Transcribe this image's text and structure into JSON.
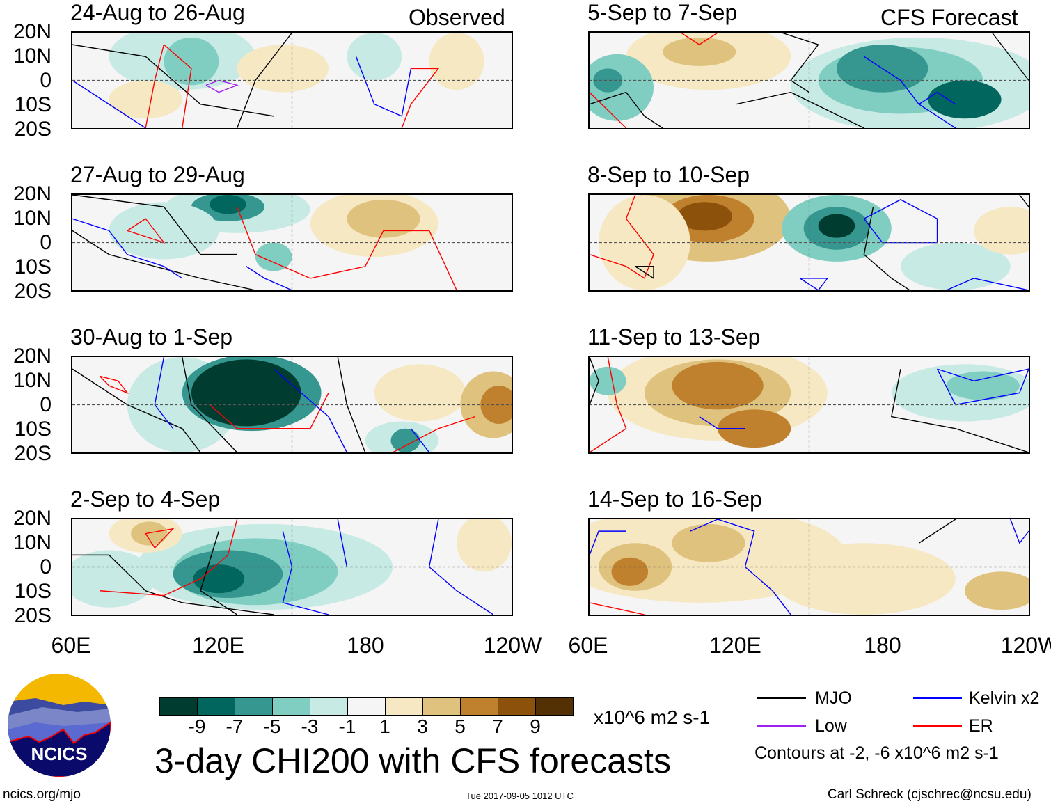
{
  "headers": {
    "observed": "Observed",
    "forecast": "CFS Forecast"
  },
  "panels": [
    {
      "title": "24-Aug to 26-Aug",
      "column": "observed"
    },
    {
      "title": "27-Aug to 29-Aug",
      "column": "observed"
    },
    {
      "title": "30-Aug to 1-Sep",
      "column": "observed"
    },
    {
      "title": "2-Sep to 4-Sep",
      "column": "observed"
    },
    {
      "title": "5-Sep to 7-Sep",
      "column": "forecast"
    },
    {
      "title": "8-Sep to 10-Sep",
      "column": "forecast"
    },
    {
      "title": "11-Sep to 13-Sep",
      "column": "forecast"
    },
    {
      "title": "14-Sep to 16-Sep",
      "column": "forecast"
    }
  ],
  "lat_labels": [
    "20N",
    "10N",
    "0",
    "10S",
    "20S"
  ],
  "lon_labels": [
    "60E",
    "120E",
    "180",
    "120W"
  ],
  "colorbar": {
    "colors": [
      "#003c30",
      "#01665e",
      "#35978f",
      "#80cdc1",
      "#c7eae5",
      "#f5f5f5",
      "#f6e8c3",
      "#dfc27d",
      "#bf812d",
      "#8c510a",
      "#543005"
    ],
    "ticks": [
      "-9",
      "-7",
      "-5",
      "-3",
      "-1",
      "1",
      "3",
      "5",
      "7",
      "9"
    ],
    "units": "x10^6 m2 s-1"
  },
  "title": "3-day CHI200 with CFS forecasts",
  "legend": {
    "items": [
      {
        "label": "MJO",
        "color": "#000000"
      },
      {
        "label": "Kelvin x2",
        "color": "#0000ff"
      },
      {
        "label": "Low",
        "color": "#a020f0"
      },
      {
        "label": "ER",
        "color": "#ff0000"
      }
    ],
    "note": "Contours at -2, -6 x10^6 m2 s-1"
  },
  "logo": {
    "text": "NCICS"
  },
  "footer": {
    "url": "ncics.org/mjo",
    "timestamp": "Tue 2017-09-05 1012 UTC",
    "credit": "Carl Schreck (cjschrec@ncsu.edu)"
  }
}
